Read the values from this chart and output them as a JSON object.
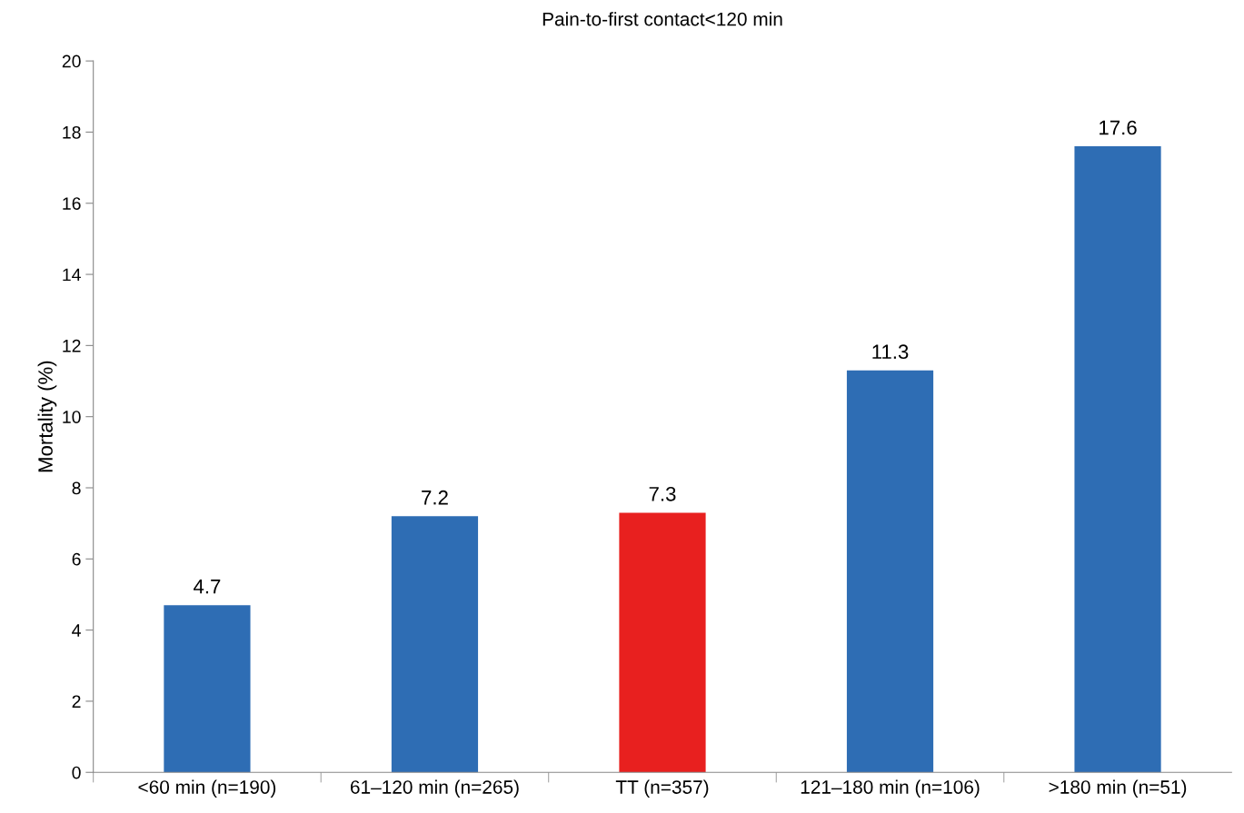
{
  "chart_data": {
    "type": "bar",
    "title": "Pain-to-first contact<120 min",
    "ylabel": "Mortality (%)",
    "categories": [
      "<60 min (n=190)",
      "61–120 min (n=265)",
      "TT (n=357)",
      "121–180 min (n=106)",
      ">180 min (n=51)"
    ],
    "values": [
      4.7,
      7.2,
      7.3,
      11.3,
      17.6
    ],
    "colors": [
      "#2e6db4",
      "#2e6db4",
      "#e8201f",
      "#2e6db4",
      "#2e6db4"
    ],
    "ylim": [
      0,
      20
    ],
    "yticks": [
      0,
      2,
      4,
      6,
      8,
      10,
      12,
      14,
      16,
      18,
      20
    ],
    "data_labels": true,
    "grid": false,
    "legend": false
  }
}
